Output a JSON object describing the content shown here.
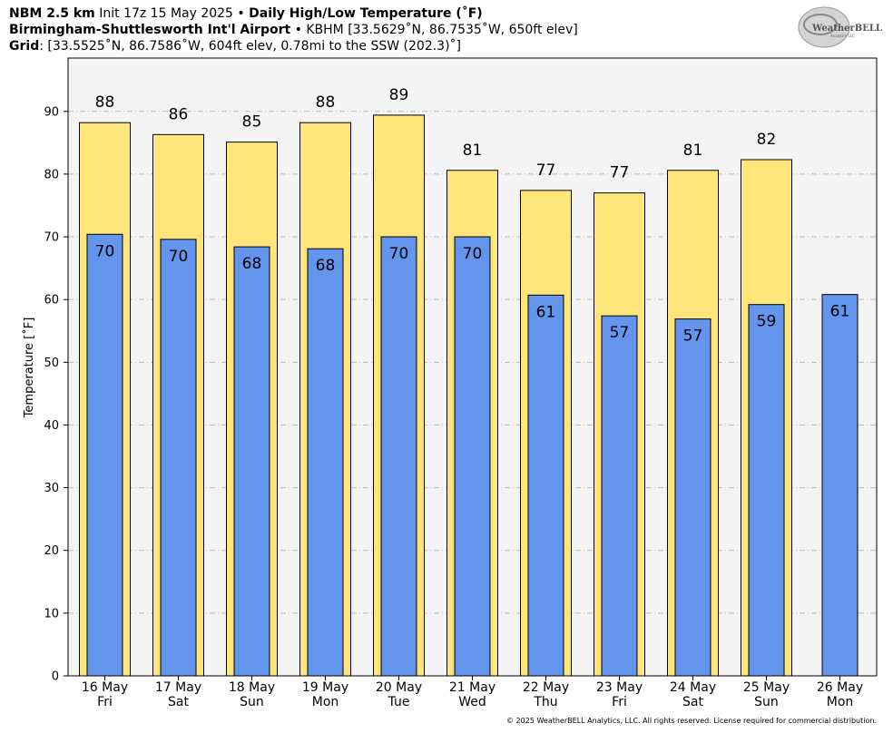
{
  "chart_data": {
    "type": "bar",
    "model": "NBM 2.5 km",
    "init": "Init 17z 15 May 2025",
    "separator": "•",
    "title": "Daily High/Low Temperature (˚F)",
    "station": "Birmingham-Shuttlesworth Int'l Airport",
    "station_info": "KBHM [33.5629˚N, 86.7535˚W, 650ft elev]",
    "grid_label": "Grid",
    "grid_info": ": [33.5525˚N, 86.7586˚W, 604ft elev, 0.78mi to the SSW (202.3)˚]",
    "logo": "WeatherBELL",
    "logo_sub": "Analytics LLC",
    "footer": "© 2025 WeatherBELL Analytics, LLC. All rights reserved. License required for commercial distribution.",
    "ylabel": "Temperature [˚F]",
    "categories": [
      "16 May",
      "17 May",
      "18 May",
      "19 May",
      "20 May",
      "21 May",
      "22 May",
      "23 May",
      "24 May",
      "25 May",
      "26 May"
    ],
    "weekdays": [
      "Fri",
      "Sat",
      "Sun",
      "Mon",
      "Tue",
      "Wed",
      "Thu",
      "Fri",
      "Sat",
      "Sun",
      "Mon"
    ],
    "series": [
      {
        "name": "High",
        "color": "#ffe57a",
        "values": [
          88.2,
          86.3,
          85.1,
          88.2,
          89.4,
          80.6,
          77.4,
          77.0,
          80.6,
          82.3,
          null
        ],
        "value_labels": [
          "88",
          "86",
          "85",
          "88",
          "89",
          "81",
          "77",
          "77",
          "81",
          "82",
          null
        ]
      },
      {
        "name": "Low",
        "color": "#6495ed",
        "values": [
          70.4,
          69.6,
          68.4,
          68.1,
          70.0,
          70.0,
          60.7,
          57.4,
          56.9,
          59.2,
          60.8
        ],
        "value_labels": [
          "70",
          "70",
          "68",
          "68",
          "70",
          "70",
          "61",
          "57",
          "57",
          "59",
          "61"
        ]
      }
    ],
    "ylim": [
      0,
      98.5
    ],
    "yticks": [
      0,
      10,
      20,
      30,
      40,
      50,
      60,
      70,
      80,
      90
    ],
    "grid": true
  }
}
